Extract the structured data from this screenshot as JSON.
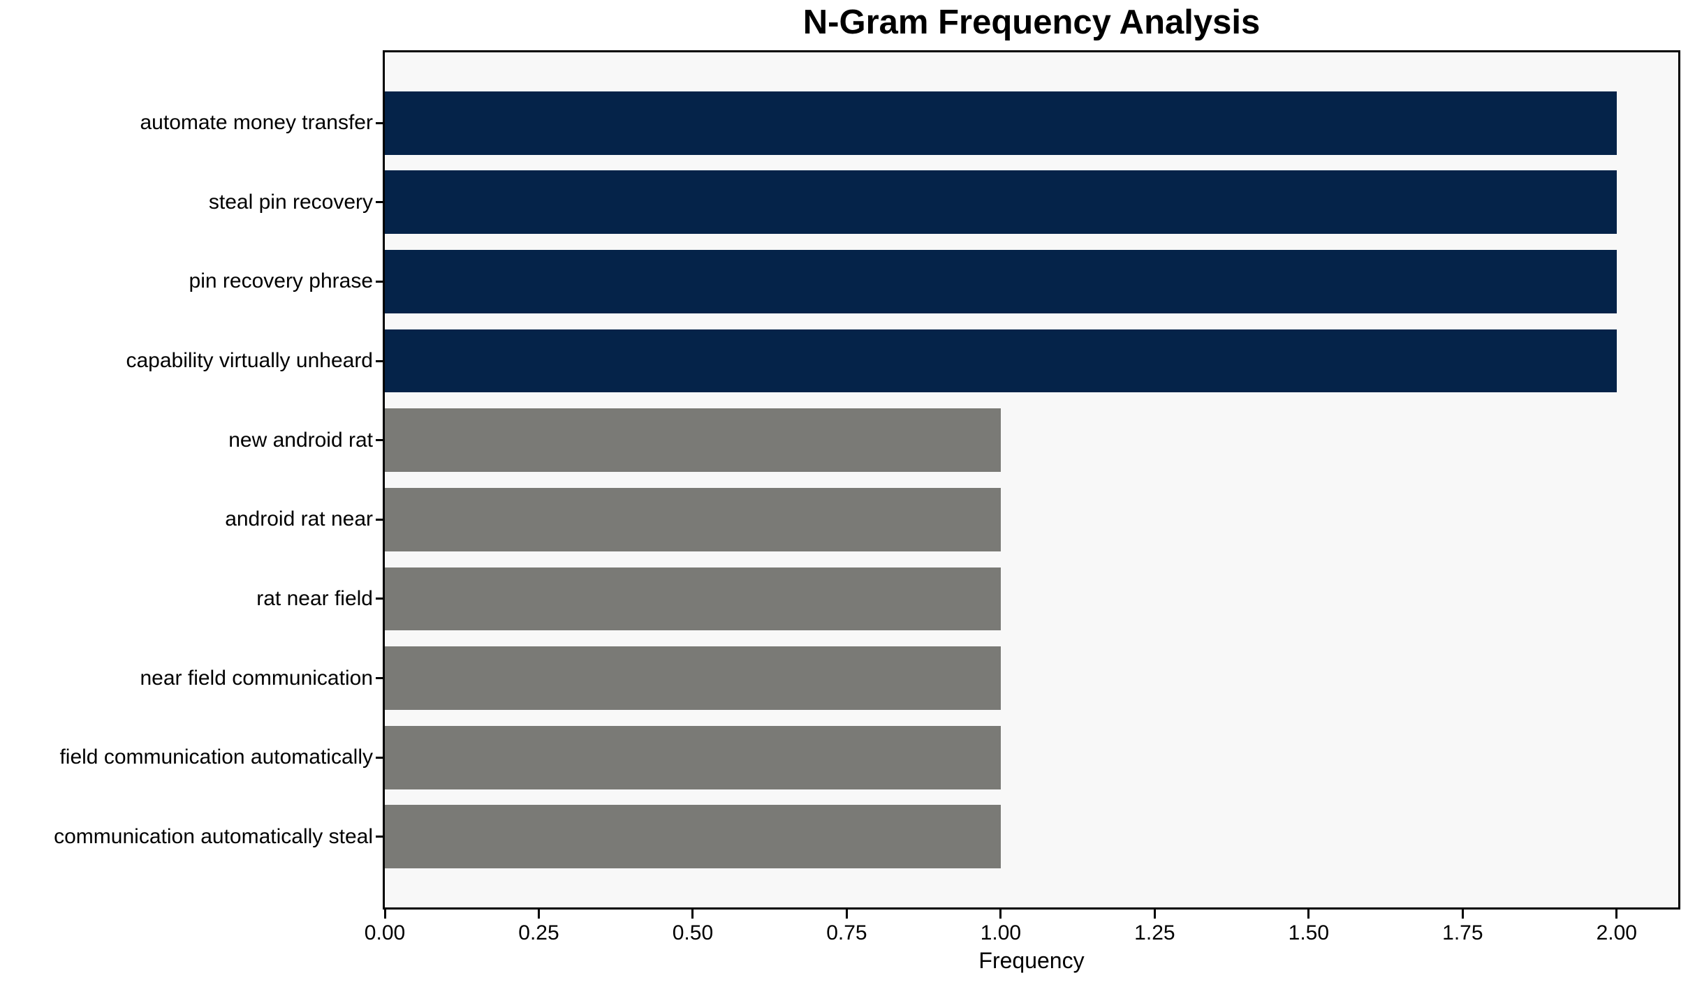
{
  "chart_data": {
    "type": "bar",
    "orientation": "horizontal",
    "title": "N-Gram Frequency Analysis",
    "xlabel": "Frequency",
    "ylabel": "",
    "categories": [
      "automate money transfer",
      "steal pin recovery",
      "pin recovery phrase",
      "capability virtually unheard",
      "new android rat",
      "android rat near",
      "rat near field",
      "near field communication",
      "field communication automatically",
      "communication automatically steal"
    ],
    "values": [
      2,
      2,
      2,
      2,
      1,
      1,
      1,
      1,
      1,
      1
    ],
    "bar_colors": [
      "#052349",
      "#052349",
      "#052349",
      "#052349",
      "#7a7a76",
      "#7a7a76",
      "#7a7a76",
      "#7a7a76",
      "#7a7a76",
      "#7a7a76"
    ],
    "xlim": [
      0,
      2.1
    ],
    "xticks": [
      0,
      0.25,
      0.5,
      0.75,
      1.0,
      1.25,
      1.5,
      1.75,
      2.0
    ],
    "xtick_labels": [
      "0.00",
      "0.25",
      "0.50",
      "0.75",
      "1.00",
      "1.25",
      "1.50",
      "1.75",
      "2.00"
    ],
    "grid": false,
    "legend": null,
    "bar_height_fraction": 0.8,
    "colors": {
      "highlight": "#052349",
      "default": "#7a7a76",
      "plot_background": "#f8f8f8",
      "figure_background": "#ffffff",
      "spine": "#000000",
      "text": "#000000"
    }
  }
}
